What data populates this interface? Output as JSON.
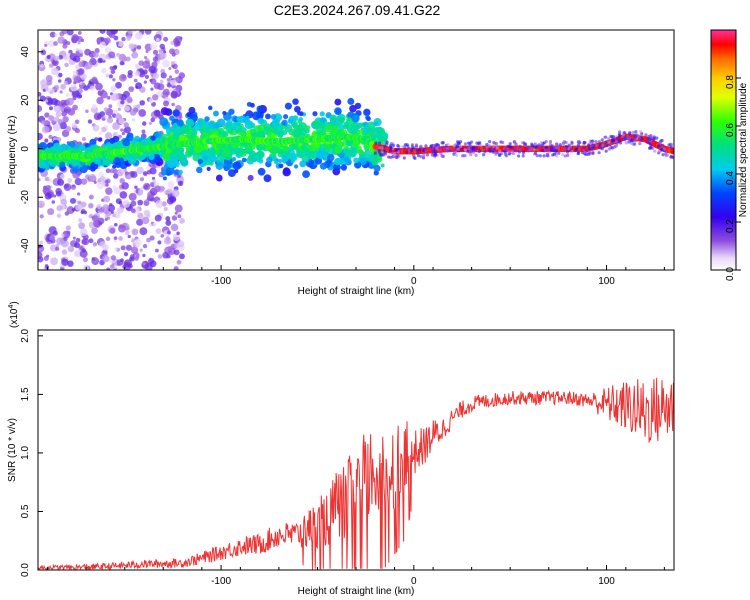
{
  "title": "C2E3.2024.267.09.41.G22",
  "chart_data": [
    {
      "type": "heatmap",
      "xlabel": "Height of straight line (km)",
      "ylabel": "Frequency (Hz)",
      "xlim": [
        -195,
        135
      ],
      "ylim": [
        -50,
        49
      ],
      "xticks": [
        -100,
        0,
        100
      ],
      "yticks": [
        -40,
        -20,
        0,
        20,
        40
      ],
      "colorbar": {
        "label": "Normalized spectral amplitude",
        "range": [
          0,
          1
        ],
        "ticks": [
          "0.0",
          "0.2",
          "0.4",
          "0.6",
          "0.8"
        ],
        "tick_values": [
          0,
          0.2,
          0.4,
          0.6,
          0.8
        ]
      },
      "ridge": {
        "x": [
          -195,
          -170,
          -150,
          -130,
          -110,
          -90,
          -70,
          -50,
          -35,
          -25,
          -20,
          -10,
          0,
          20,
          50,
          90,
          100,
          110,
          120,
          130,
          135
        ],
        "y": [
          -3,
          -3,
          -1,
          1,
          3,
          4,
          3,
          4,
          5,
          4,
          1,
          -1,
          -1,
          0,
          0,
          0,
          2,
          5,
          4,
          0,
          -1
        ]
      }
    },
    {
      "type": "line",
      "xlabel": "Height of straight line (km)",
      "ylabel": "SNR (10 * v/v)",
      "multiplier": "(x10",
      "multiplier_exp": "4",
      "multiplier_close": ")",
      "xlim": [
        -195,
        135
      ],
      "ylim": [
        0,
        2.05
      ],
      "xticks": [
        -100,
        0,
        100
      ],
      "yticks": [
        0.0,
        0.5,
        1.0,
        1.5,
        2.0
      ],
      "series": [
        {
          "color": "#ee3333",
          "envelope": {
            "x": [
              -195,
              -180,
              -160,
              -140,
              -120,
              -110,
              -100,
              -90,
              -80,
              -70,
              -60,
              -50,
              -45,
              -40,
              -35,
              -30,
              -25,
              -20,
              -15,
              -10,
              -5,
              0,
              5,
              10,
              15,
              20,
              25,
              30,
              40,
              50,
              60,
              70,
              80,
              90,
              100,
              110,
              120,
              130,
              135
            ],
            "y": [
              0.02,
              0.02,
              0.03,
              0.05,
              0.06,
              0.1,
              0.15,
              0.2,
              0.22,
              0.3,
              0.3,
              0.4,
              0.45,
              0.55,
              0.6,
              0.7,
              0.8,
              0.85,
              0.85,
              0.9,
              0.95,
              1.0,
              1.05,
              1.15,
              1.2,
              1.3,
              1.37,
              1.42,
              1.45,
              1.47,
              1.47,
              1.47,
              1.47,
              1.45,
              1.42,
              1.4,
              1.35,
              1.38,
              1.4
            ]
          },
          "noise": {
            "x": [
              -195,
              -120,
              -60,
              -40,
              -20,
              -5,
              0,
              20,
              40,
              90,
              100,
              120,
              135
            ],
            "amp": [
              0.02,
              0.04,
              0.12,
              0.3,
              0.45,
              0.35,
              0.2,
              0.08,
              0.06,
              0.06,
              0.15,
              0.3,
              0.3
            ]
          }
        }
      ]
    }
  ]
}
